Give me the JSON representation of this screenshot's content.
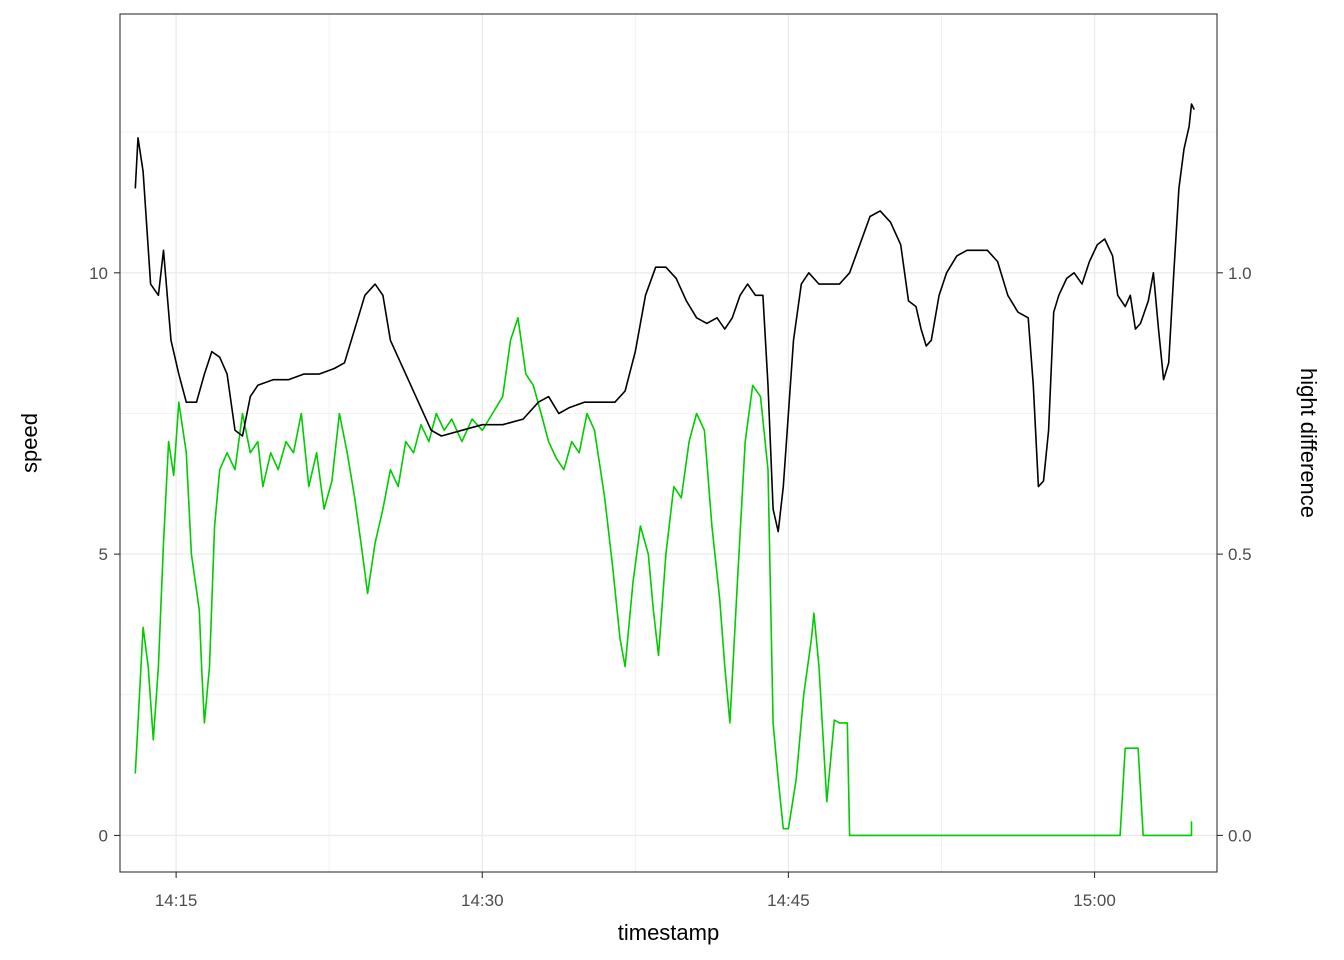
{
  "chart_data": {
    "type": "line",
    "xlabel": "timestamp",
    "ylabel": "speed",
    "y2label": "hight difference",
    "x_unit": "time of day (HH:MM)",
    "xlim": [
      "14:12:15",
      "15:06:00"
    ],
    "ylim": [
      -0.65,
      14.6
    ],
    "y2lim": [
      -0.065,
      1.46
    ],
    "x_ticks": [
      "14:15",
      "14:30",
      "14:45",
      "15:00"
    ],
    "y_ticks": [
      0,
      5,
      10
    ],
    "y_tick_labels": [
      "0",
      "5",
      "10"
    ],
    "y2_ticks": [
      0.0,
      0.5,
      1.0
    ],
    "y2_tick_labels": [
      "0.0",
      "0.5",
      "1.0"
    ],
    "grid": true,
    "theme": "bw",
    "series": [
      {
        "axis": "left",
        "color": "#00cc00",
        "points": [
          [
            "14:13:00",
            1.1
          ],
          [
            "14:13:15",
            2.8
          ],
          [
            "14:13:23",
            3.7
          ],
          [
            "14:13:38",
            3.0
          ],
          [
            "14:13:53",
            1.7
          ],
          [
            "14:14:08",
            3.0
          ],
          [
            "14:14:23",
            5.2
          ],
          [
            "14:14:38",
            7.0
          ],
          [
            "14:14:53",
            6.4
          ],
          [
            "14:15:08",
            7.7
          ],
          [
            "14:15:30",
            6.8
          ],
          [
            "14:15:45",
            5.0
          ],
          [
            "14:16:08",
            4.0
          ],
          [
            "14:16:15",
            3.0
          ],
          [
            "14:16:23",
            2.0
          ],
          [
            "14:16:38",
            3.0
          ],
          [
            "14:16:53",
            5.5
          ],
          [
            "14:17:08",
            6.5
          ],
          [
            "14:17:30",
            6.8
          ],
          [
            "14:17:53",
            6.5
          ],
          [
            "14:18:15",
            7.5
          ],
          [
            "14:18:38",
            6.8
          ],
          [
            "14:19:00",
            7.0
          ],
          [
            "14:19:15",
            6.2
          ],
          [
            "14:19:38",
            6.8
          ],
          [
            "14:20:00",
            6.5
          ],
          [
            "14:20:23",
            7.0
          ],
          [
            "14:20:45",
            6.8
          ],
          [
            "14:21:08",
            7.5
          ],
          [
            "14:21:30",
            6.2
          ],
          [
            "14:21:53",
            6.8
          ],
          [
            "14:22:15",
            5.8
          ],
          [
            "14:22:38",
            6.3
          ],
          [
            "14:23:00",
            7.5
          ],
          [
            "14:23:23",
            6.8
          ],
          [
            "14:23:45",
            6.0
          ],
          [
            "14:24:08",
            5.0
          ],
          [
            "14:24:23",
            4.3
          ],
          [
            "14:24:45",
            5.2
          ],
          [
            "14:25:08",
            5.8
          ],
          [
            "14:25:30",
            6.5
          ],
          [
            "14:25:53",
            6.2
          ],
          [
            "14:26:15",
            7.0
          ],
          [
            "14:26:38",
            6.8
          ],
          [
            "14:27:00",
            7.3
          ],
          [
            "14:27:23",
            7.0
          ],
          [
            "14:27:45",
            7.5
          ],
          [
            "14:28:08",
            7.2
          ],
          [
            "14:28:30",
            7.4
          ],
          [
            "14:29:00",
            7.0
          ],
          [
            "14:29:30",
            7.4
          ],
          [
            "14:30:00",
            7.2
          ],
          [
            "14:30:30",
            7.5
          ],
          [
            "14:31:00",
            7.8
          ],
          [
            "14:31:23",
            8.8
          ],
          [
            "14:31:45",
            9.2
          ],
          [
            "14:32:08",
            8.2
          ],
          [
            "14:32:30",
            8.0
          ],
          [
            "14:32:53",
            7.5
          ],
          [
            "14:33:15",
            7.0
          ],
          [
            "14:33:38",
            6.7
          ],
          [
            "14:34:00",
            6.5
          ],
          [
            "14:34:23",
            7.0
          ],
          [
            "14:34:45",
            6.8
          ],
          [
            "14:35:08",
            7.5
          ],
          [
            "14:35:30",
            7.2
          ],
          [
            "14:36:00",
            6.0
          ],
          [
            "14:36:23",
            4.8
          ],
          [
            "14:36:45",
            3.5
          ],
          [
            "14:37:00",
            3.0
          ],
          [
            "14:37:23",
            4.5
          ],
          [
            "14:37:45",
            5.5
          ],
          [
            "14:38:08",
            5.0
          ],
          [
            "14:38:23",
            4.0
          ],
          [
            "14:38:38",
            3.2
          ],
          [
            "14:39:00",
            5.0
          ],
          [
            "14:39:23",
            6.2
          ],
          [
            "14:39:45",
            6.0
          ],
          [
            "14:40:08",
            7.0
          ],
          [
            "14:40:30",
            7.5
          ],
          [
            "14:40:53",
            7.2
          ],
          [
            "14:41:15",
            5.5
          ],
          [
            "14:41:38",
            4.2
          ],
          [
            "14:41:53",
            3.0
          ],
          [
            "14:42:08",
            2.0
          ],
          [
            "14:42:30",
            4.5
          ],
          [
            "14:42:53",
            7.0
          ],
          [
            "14:43:15",
            8.0
          ],
          [
            "14:43:38",
            7.8
          ],
          [
            "14:44:00",
            6.5
          ],
          [
            "14:44:15",
            2.0
          ],
          [
            "14:44:30",
            1.0
          ],
          [
            "14:44:45",
            0.12
          ],
          [
            "14:45:00",
            0.12
          ],
          [
            "14:45:23",
            1.0
          ],
          [
            "14:45:45",
            2.5
          ],
          [
            "14:46:08",
            3.5
          ],
          [
            "14:46:15",
            3.95
          ],
          [
            "14:46:30",
            3.0
          ],
          [
            "14:46:53",
            0.6
          ],
          [
            "14:47:15",
            2.05
          ],
          [
            "14:47:30",
            2.0
          ],
          [
            "14:47:53",
            2.0
          ],
          [
            "14:48:00",
            0.0
          ],
          [
            "15:01:15",
            0.0
          ],
          [
            "15:01:30",
            1.55
          ],
          [
            "15:02:08",
            1.55
          ],
          [
            "15:02:23",
            0.0
          ],
          [
            "15:04:45",
            0.0
          ],
          [
            "15:04:45",
            0.25
          ]
        ]
      },
      {
        "axis": "right",
        "color": "#000000",
        "points": [
          [
            "14:13:00",
            1.15
          ],
          [
            "14:13:08",
            1.24
          ],
          [
            "14:13:23",
            1.18
          ],
          [
            "14:13:45",
            0.98
          ],
          [
            "14:14:08",
            0.96
          ],
          [
            "14:14:23",
            1.04
          ],
          [
            "14:14:45",
            0.88
          ],
          [
            "14:15:08",
            0.82
          ],
          [
            "14:15:30",
            0.77
          ],
          [
            "14:16:00",
            0.77
          ],
          [
            "14:16:23",
            0.82
          ],
          [
            "14:16:45",
            0.86
          ],
          [
            "14:17:08",
            0.85
          ],
          [
            "14:17:30",
            0.82
          ],
          [
            "14:17:53",
            0.72
          ],
          [
            "14:18:15",
            0.71
          ],
          [
            "14:18:38",
            0.78
          ],
          [
            "14:19:00",
            0.8
          ],
          [
            "14:19:45",
            0.81
          ],
          [
            "14:20:30",
            0.81
          ],
          [
            "14:21:15",
            0.82
          ],
          [
            "14:22:00",
            0.82
          ],
          [
            "14:22:45",
            0.83
          ],
          [
            "14:23:15",
            0.84
          ],
          [
            "14:23:45",
            0.9
          ],
          [
            "14:24:15",
            0.96
          ],
          [
            "14:24:45",
            0.98
          ],
          [
            "14:25:08",
            0.96
          ],
          [
            "14:25:30",
            0.88
          ],
          [
            "14:26:00",
            0.84
          ],
          [
            "14:26:30",
            0.8
          ],
          [
            "14:27:00",
            0.76
          ],
          [
            "14:27:30",
            0.72
          ],
          [
            "14:28:00",
            0.71
          ],
          [
            "14:29:00",
            0.72
          ],
          [
            "14:30:00",
            0.73
          ],
          [
            "14:31:00",
            0.73
          ],
          [
            "14:32:00",
            0.74
          ],
          [
            "14:32:45",
            0.77
          ],
          [
            "14:33:15",
            0.78
          ],
          [
            "14:33:45",
            0.75
          ],
          [
            "14:34:15",
            0.76
          ],
          [
            "14:35:00",
            0.77
          ],
          [
            "14:35:45",
            0.77
          ],
          [
            "14:36:30",
            0.77
          ],
          [
            "14:37:00",
            0.79
          ],
          [
            "14:37:30",
            0.86
          ],
          [
            "14:38:00",
            0.96
          ],
          [
            "14:38:30",
            1.01
          ],
          [
            "14:39:00",
            1.01
          ],
          [
            "14:39:30",
            0.99
          ],
          [
            "14:40:00",
            0.95
          ],
          [
            "14:40:30",
            0.92
          ],
          [
            "14:41:00",
            0.91
          ],
          [
            "14:41:30",
            0.92
          ],
          [
            "14:41:53",
            0.9
          ],
          [
            "14:42:15",
            0.92
          ],
          [
            "14:42:38",
            0.96
          ],
          [
            "14:43:00",
            0.98
          ],
          [
            "14:43:23",
            0.96
          ],
          [
            "14:43:45",
            0.96
          ],
          [
            "14:44:00",
            0.8
          ],
          [
            "14:44:15",
            0.58
          ],
          [
            "14:44:30",
            0.54
          ],
          [
            "14:44:45",
            0.62
          ],
          [
            "14:45:15",
            0.88
          ],
          [
            "14:45:38",
            0.98
          ],
          [
            "14:46:00",
            1.0
          ],
          [
            "14:46:30",
            0.98
          ],
          [
            "14:47:00",
            0.98
          ],
          [
            "14:47:30",
            0.98
          ],
          [
            "14:48:00",
            1.0
          ],
          [
            "14:48:30",
            1.05
          ],
          [
            "14:49:00",
            1.1
          ],
          [
            "14:49:30",
            1.11
          ],
          [
            "14:50:00",
            1.09
          ],
          [
            "14:50:30",
            1.05
          ],
          [
            "14:50:53",
            0.95
          ],
          [
            "14:51:15",
            0.94
          ],
          [
            "14:51:30",
            0.9
          ],
          [
            "14:51:45",
            0.87
          ],
          [
            "14:52:00",
            0.88
          ],
          [
            "14:52:23",
            0.96
          ],
          [
            "14:52:45",
            1.0
          ],
          [
            "14:53:15",
            1.03
          ],
          [
            "14:53:45",
            1.04
          ],
          [
            "14:54:15",
            1.04
          ],
          [
            "14:54:45",
            1.04
          ],
          [
            "14:55:15",
            1.02
          ],
          [
            "14:55:45",
            0.96
          ],
          [
            "14:56:15",
            0.93
          ],
          [
            "14:56:45",
            0.92
          ],
          [
            "14:57:00",
            0.8
          ],
          [
            "14:57:15",
            0.62
          ],
          [
            "14:57:30",
            0.63
          ],
          [
            "14:57:45",
            0.72
          ],
          [
            "14:58:00",
            0.93
          ],
          [
            "14:58:15",
            0.96
          ],
          [
            "14:58:38",
            0.99
          ],
          [
            "14:59:00",
            1.0
          ],
          [
            "14:59:23",
            0.98
          ],
          [
            "14:59:45",
            1.02
          ],
          [
            "15:00:08",
            1.05
          ],
          [
            "15:00:30",
            1.06
          ],
          [
            "15:00:53",
            1.03
          ],
          [
            "15:01:08",
            0.96
          ],
          [
            "15:01:30",
            0.94
          ],
          [
            "15:01:45",
            0.96
          ],
          [
            "15:02:00",
            0.9
          ],
          [
            "15:02:15",
            0.91
          ],
          [
            "15:02:38",
            0.95
          ],
          [
            "15:02:53",
            1.0
          ],
          [
            "15:03:08",
            0.9
          ],
          [
            "15:03:23",
            0.81
          ],
          [
            "15:03:38",
            0.84
          ],
          [
            "15:03:53",
            1.0
          ],
          [
            "15:04:08",
            1.15
          ],
          [
            "15:04:23",
            1.22
          ],
          [
            "15:04:38",
            1.26
          ],
          [
            "15:04:45",
            1.3
          ],
          [
            "15:04:53",
            1.29
          ]
        ]
      }
    ]
  }
}
